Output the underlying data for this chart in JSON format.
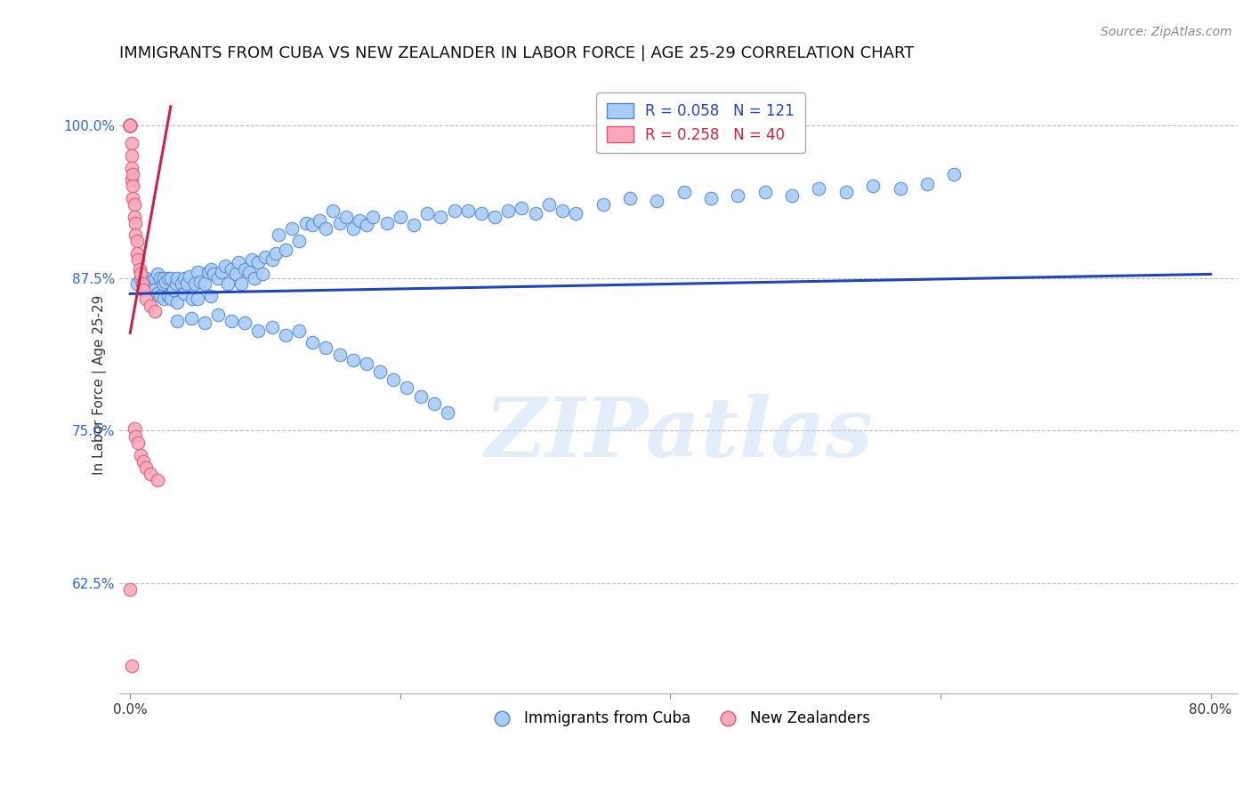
{
  "title": "IMMIGRANTS FROM CUBA VS NEW ZEALANDER IN LABOR FORCE | AGE 25-29 CORRELATION CHART",
  "source": "Source: ZipAtlas.com",
  "ylabel": "In Labor Force | Age 25-29",
  "y_ticks": [
    0.625,
    0.75,
    0.875,
    1.0
  ],
  "y_tick_labels": [
    "62.5%",
    "75.0%",
    "87.5%",
    "100.0%"
  ],
  "xlim": [
    -0.008,
    0.82
  ],
  "ylim": [
    0.535,
    1.04
  ],
  "blue_R": 0.058,
  "blue_N": 121,
  "pink_R": 0.258,
  "pink_N": 40,
  "blue_color": "#aaccf8",
  "blue_edge": "#5588cc",
  "pink_color": "#f8aabb",
  "pink_edge": "#dd5577",
  "blue_line_color": "#2244bb",
  "pink_line_color": "#cc2244",
  "title_fontsize": 13,
  "axis_label_fontsize": 11,
  "tick_fontsize": 11,
  "legend_fontsize": 12,
  "watermark": "ZIPatlas",
  "blue_line_x": [
    0.0,
    0.8
  ],
  "blue_line_y": [
    0.862,
    0.878
  ],
  "pink_line_x": [
    0.0,
    0.03
  ],
  "pink_line_y": [
    0.83,
    1.015
  ],
  "blue_scatter_x": [
    0.005,
    0.008,
    0.01,
    0.012,
    0.015,
    0.015,
    0.018,
    0.018,
    0.02,
    0.02,
    0.022,
    0.022,
    0.024,
    0.025,
    0.025,
    0.026,
    0.028,
    0.028,
    0.03,
    0.03,
    0.032,
    0.034,
    0.035,
    0.035,
    0.038,
    0.04,
    0.04,
    0.042,
    0.044,
    0.046,
    0.048,
    0.05,
    0.05,
    0.052,
    0.055,
    0.058,
    0.06,
    0.06,
    0.062,
    0.065,
    0.068,
    0.07,
    0.072,
    0.075,
    0.078,
    0.08,
    0.082,
    0.085,
    0.088,
    0.09,
    0.092,
    0.095,
    0.098,
    0.1,
    0.105,
    0.108,
    0.11,
    0.115,
    0.12,
    0.125,
    0.13,
    0.135,
    0.14,
    0.145,
    0.15,
    0.155,
    0.16,
    0.165,
    0.17,
    0.175,
    0.18,
    0.19,
    0.2,
    0.21,
    0.22,
    0.23,
    0.24,
    0.25,
    0.26,
    0.27,
    0.28,
    0.29,
    0.3,
    0.31,
    0.32,
    0.33,
    0.35,
    0.37,
    0.39,
    0.41,
    0.43,
    0.45,
    0.47,
    0.49,
    0.51,
    0.53,
    0.55,
    0.57,
    0.59,
    0.61,
    0.035,
    0.045,
    0.055,
    0.065,
    0.075,
    0.085,
    0.095,
    0.105,
    0.115,
    0.125,
    0.135,
    0.145,
    0.155,
    0.165,
    0.175,
    0.185,
    0.195,
    0.205,
    0.215,
    0.225,
    0.235
  ],
  "blue_scatter_y": [
    0.87,
    0.875,
    0.87,
    0.875,
    0.872,
    0.868,
    0.875,
    0.865,
    0.878,
    0.862,
    0.875,
    0.86,
    0.87,
    0.875,
    0.858,
    0.872,
    0.875,
    0.86,
    0.875,
    0.858,
    0.865,
    0.87,
    0.875,
    0.855,
    0.87,
    0.875,
    0.862,
    0.87,
    0.876,
    0.858,
    0.87,
    0.88,
    0.858,
    0.872,
    0.87,
    0.88,
    0.882,
    0.86,
    0.878,
    0.875,
    0.88,
    0.885,
    0.87,
    0.882,
    0.878,
    0.888,
    0.87,
    0.882,
    0.88,
    0.89,
    0.875,
    0.888,
    0.878,
    0.892,
    0.89,
    0.895,
    0.91,
    0.898,
    0.915,
    0.905,
    0.92,
    0.918,
    0.922,
    0.915,
    0.93,
    0.92,
    0.925,
    0.915,
    0.922,
    0.918,
    0.925,
    0.92,
    0.925,
    0.918,
    0.928,
    0.925,
    0.93,
    0.93,
    0.928,
    0.925,
    0.93,
    0.932,
    0.928,
    0.935,
    0.93,
    0.928,
    0.935,
    0.94,
    0.938,
    0.945,
    0.94,
    0.942,
    0.945,
    0.942,
    0.948,
    0.945,
    0.95,
    0.948,
    0.952,
    0.96,
    0.84,
    0.842,
    0.838,
    0.845,
    0.84,
    0.838,
    0.832,
    0.835,
    0.828,
    0.832,
    0.822,
    0.818,
    0.812,
    0.808,
    0.805,
    0.798,
    0.792,
    0.785,
    0.778,
    0.772,
    0.765
  ],
  "pink_scatter_x": [
    0.0,
    0.0,
    0.0,
    0.0,
    0.0,
    0.0,
    0.0,
    0.0,
    0.0,
    0.001,
    0.001,
    0.001,
    0.001,
    0.002,
    0.002,
    0.002,
    0.003,
    0.003,
    0.004,
    0.004,
    0.005,
    0.005,
    0.006,
    0.007,
    0.008,
    0.009,
    0.01,
    0.012,
    0.015,
    0.018,
    0.003,
    0.004,
    0.006,
    0.008,
    0.01,
    0.012,
    0.015,
    0.02,
    0.0,
    0.001
  ],
  "pink_scatter_y": [
    1.0,
    1.0,
    1.0,
    1.0,
    1.0,
    1.0,
    1.0,
    1.0,
    1.0,
    0.985,
    0.975,
    0.965,
    0.955,
    0.96,
    0.95,
    0.94,
    0.935,
    0.925,
    0.92,
    0.91,
    0.905,
    0.895,
    0.89,
    0.882,
    0.878,
    0.87,
    0.865,
    0.858,
    0.852,
    0.848,
    0.752,
    0.745,
    0.74,
    0.73,
    0.725,
    0.72,
    0.715,
    0.71,
    0.62,
    0.558
  ]
}
